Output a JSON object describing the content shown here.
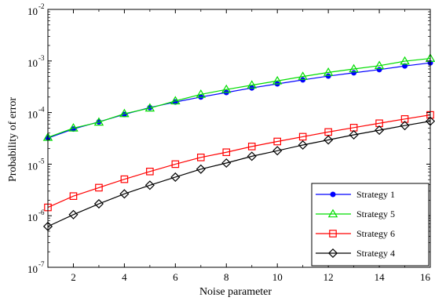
{
  "chart_data": {
    "type": "line",
    "title": "",
    "xlabel": "Noise parameter",
    "ylabel": "Probability of error",
    "xlim": [
      1,
      16
    ],
    "ylim": [
      1e-07,
      0.01
    ],
    "yscale": "log",
    "grid": false,
    "legend_position": "bottom-right",
    "x_ticks": [
      2,
      4,
      6,
      8,
      10,
      12,
      14,
      16
    ],
    "y_ticks": [
      {
        "base": "10",
        "exp": "-7",
        "value": 1e-07
      },
      {
        "base": "10",
        "exp": "-6",
        "value": 1e-06
      },
      {
        "base": "10",
        "exp": "-5",
        "value": 1e-05
      },
      {
        "base": "10",
        "exp": "-4",
        "value": 0.0001
      },
      {
        "base": "10",
        "exp": "-3",
        "value": 0.001
      },
      {
        "base": "10",
        "exp": "-2",
        "value": 0.01
      }
    ],
    "x": [
      1,
      2,
      3,
      4,
      5,
      6,
      7,
      8,
      9,
      10,
      11,
      12,
      13,
      14,
      15,
      16
    ],
    "series": [
      {
        "name": "Strategy 1",
        "color": "#0000ff",
        "marker": "dot",
        "values": [
          3.2e-05,
          4.8e-05,
          6.6e-05,
          9.2e-05,
          0.000125,
          0.00016,
          0.0002,
          0.000245,
          0.0003,
          0.00036,
          0.00043,
          0.00051,
          0.00059,
          0.00068,
          0.0008,
          0.00092
        ]
      },
      {
        "name": "Strategy 5",
        "color": "#00dd00",
        "marker": "triangle",
        "values": [
          3.3e-05,
          5e-05,
          6.5e-05,
          9.5e-05,
          0.000122,
          0.000168,
          0.000225,
          0.00028,
          0.00034,
          0.00041,
          0.0005,
          0.0006,
          0.0007,
          0.00081,
          0.00099,
          0.00112
        ]
      },
      {
        "name": "Strategy 6",
        "color": "#ff0000",
        "marker": "square",
        "values": [
          1.45e-06,
          2.4e-06,
          3.5e-06,
          5.1e-06,
          7.2e-06,
          1e-05,
          1.35e-05,
          1.7e-05,
          2.2e-05,
          2.75e-05,
          3.4e-05,
          4.2e-05,
          5.1e-05,
          6.2e-05,
          7.5e-05,
          9e-05
        ]
      },
      {
        "name": "Strategy 4",
        "color": "#000000",
        "marker": "diamond",
        "values": [
          6.2e-07,
          1.05e-06,
          1.7e-06,
          2.65e-06,
          3.9e-06,
          5.6e-06,
          8e-06,
          1.05e-05,
          1.42e-05,
          1.82e-05,
          2.35e-05,
          2.95e-05,
          3.7e-05,
          4.55e-05,
          5.6e-05,
          6.8e-05
        ]
      }
    ]
  }
}
